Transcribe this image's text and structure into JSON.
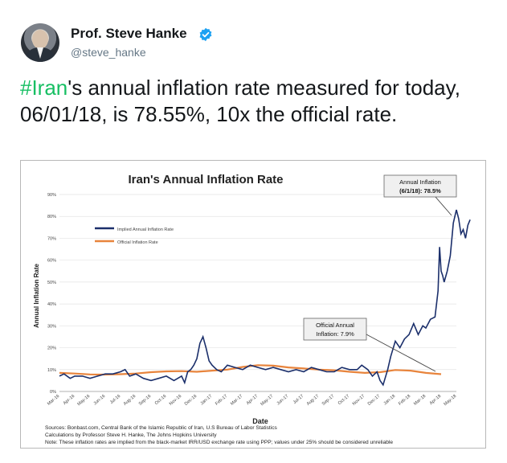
{
  "author": {
    "name": "Prof. Steve Hanke",
    "handle": "@steve_hanke",
    "verified_icon": "verified-badge-icon",
    "badge_color": "#1da1f2"
  },
  "tweet": {
    "hashtag": "#Iran",
    "text": "'s annual inflation rate measured for today, 06/01/18, is 78.55%, 10x the official rate."
  },
  "chart_data": {
    "type": "line",
    "title": "Iran's Annual Inflation Rate",
    "xlabel": "Date",
    "ylabel": "Annual Inflation Rate",
    "ylim": [
      0,
      90
    ],
    "y_ticks": [
      "0%",
      "10%",
      "20%",
      "30%",
      "40%",
      "50%",
      "60%",
      "70%",
      "80%",
      "90%"
    ],
    "x_ticks": [
      "Mar-16",
      "Apr-16",
      "May-16",
      "Jun-16",
      "Jul-16",
      "Aug-16",
      "Sep-16",
      "Oct-16",
      "Nov-16",
      "Dec-16",
      "Jan-17",
      "Feb-17",
      "Mar-17",
      "Apr-17",
      "May-17",
      "Jun-17",
      "Jul-17",
      "Aug-17",
      "Sep-17",
      "Oct-17",
      "Nov-17",
      "Dec-17",
      "Jan-18",
      "Feb-18",
      "Mar-18",
      "Apr-18",
      "May-18"
    ],
    "grid": true,
    "legend": "top-left",
    "series": [
      {
        "name": "Implied Annual Inflation Rate",
        "color": "#1b2f6b",
        "x": [
          0,
          0.3,
          0.7,
          1.0,
          1.5,
          2.0,
          2.5,
          3.0,
          3.5,
          4.0,
          4.3,
          4.6,
          5.0,
          5.5,
          6.0,
          6.5,
          7.0,
          7.5,
          8.0,
          8.2,
          8.4,
          8.6,
          8.8,
          9.0,
          9.2,
          9.4,
          9.6,
          9.8,
          10.0,
          10.3,
          10.6,
          11.0,
          11.5,
          12.0,
          12.5,
          13.0,
          13.5,
          14.0,
          14.5,
          15.0,
          15.5,
          16.0,
          16.5,
          17.0,
          17.5,
          18.0,
          18.5,
          19.0,
          19.5,
          19.8,
          20.2,
          20.5,
          20.8,
          21.0,
          21.2,
          21.5,
          21.7,
          22.0,
          22.3,
          22.6,
          22.9,
          23.2,
          23.5,
          23.8,
          24.0,
          24.3,
          24.6,
          24.8,
          24.9,
          25.0,
          25.1,
          25.2,
          25.4,
          25.6,
          25.8,
          26.0,
          26.15,
          26.3,
          26.45,
          26.6,
          26.75,
          26.9
        ],
        "y": [
          7,
          8,
          6,
          7,
          7,
          6,
          7,
          8,
          8,
          9,
          10,
          7,
          8,
          6,
          5,
          6,
          7,
          5,
          7,
          4,
          9,
          10,
          12,
          15,
          22,
          25,
          20,
          14,
          12,
          10,
          9,
          12,
          11,
          10,
          12,
          11,
          10,
          11,
          10,
          9,
          10,
          9,
          11,
          10,
          9,
          9,
          11,
          10,
          10,
          12,
          10,
          7,
          9,
          5,
          3,
          10,
          16,
          23,
          20,
          24,
          26,
          31,
          26,
          30,
          29,
          33,
          34,
          46,
          66,
          55,
          53,
          50,
          55,
          62,
          77,
          83,
          79,
          72,
          74,
          70,
          76,
          78.5
        ]
      },
      {
        "name": "Official Inflation Rate",
        "color": "#e8843c",
        "x": [
          0,
          1,
          2,
          3,
          4,
          5,
          6,
          7,
          8,
          9,
          10,
          11,
          12,
          13,
          14,
          15,
          16,
          17,
          18,
          19,
          20,
          21,
          22,
          23,
          24,
          25
        ],
        "y": [
          8.5,
          8.2,
          7.8,
          7.7,
          7.9,
          8.2,
          8.8,
          9.2,
          9.3,
          9.0,
          9.5,
          10.0,
          11.2,
          12.0,
          11.8,
          11.0,
          10.5,
          10.0,
          9.7,
          9.0,
          8.5,
          8.8,
          9.8,
          9.5,
          8.5,
          7.9
        ]
      }
    ],
    "annotations": [
      {
        "text_line1": "Annual Inflation",
        "text_line2": "(6/1/18): 78.5%"
      },
      {
        "text_line1": "Official Annual",
        "text_line2": "Inflation: 7.9%"
      }
    ],
    "footer": [
      "Sources: Bonbast.com, Central Bank of the Islamic Republic of Iran, U.S Bureau of Labor Statistics",
      "Calculations by Professor Steve H. Hanke, The Johns Hopkins University",
      "Note: These inflation rates are implied from the black-market IRR/USD exchange rate using PPP; values under 25% should be considered unreliable"
    ]
  }
}
